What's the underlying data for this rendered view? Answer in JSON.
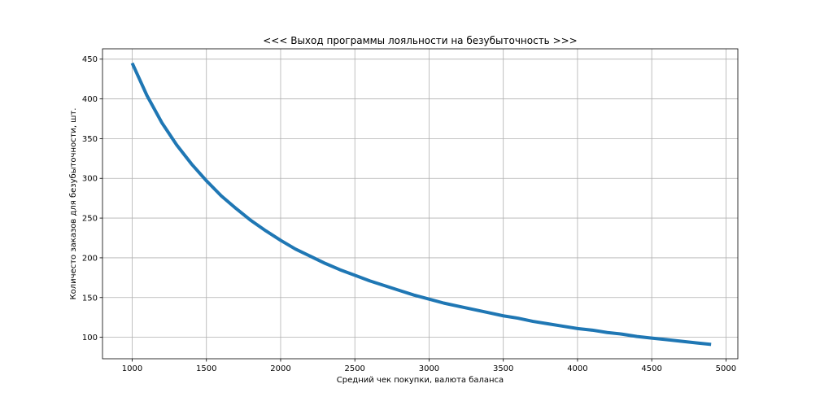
{
  "chart_data": {
    "type": "line",
    "title": "<<< Выход программы лояльности на безубыточность >>>",
    "xlabel": "Средний чек покупки, валюта баланса",
    "ylabel": "Количесто заказов для безубыточности, шт.",
    "xlim": [
      800,
      5080
    ],
    "ylim": [
      73,
      463
    ],
    "xticks": [
      1000,
      1500,
      2000,
      2500,
      3000,
      3500,
      4000,
      4500,
      5000
    ],
    "yticks": [
      100,
      150,
      200,
      250,
      300,
      350,
      400,
      450
    ],
    "grid": true,
    "series": [
      {
        "color": "#1f77b4",
        "x": [
          1000,
          1100,
          1200,
          1300,
          1400,
          1500,
          1600,
          1700,
          1800,
          1900,
          2000,
          2100,
          2200,
          2300,
          2400,
          2500,
          2600,
          2700,
          2800,
          2900,
          3000,
          3100,
          3200,
          3300,
          3400,
          3500,
          3600,
          3700,
          3800,
          3900,
          4000,
          4100,
          4200,
          4300,
          4400,
          4500,
          4600,
          4700,
          4800,
          4900
        ],
        "y": [
          445,
          404,
          370,
          342,
          318,
          297,
          278,
          262,
          247,
          234,
          222,
          211,
          202,
          193,
          185,
          178,
          171,
          165,
          159,
          153,
          148,
          143,
          139,
          135,
          131,
          127,
          124,
          120,
          117,
          114,
          111,
          109,
          106,
          104,
          101,
          99,
          97,
          95,
          93,
          91
        ]
      }
    ]
  }
}
